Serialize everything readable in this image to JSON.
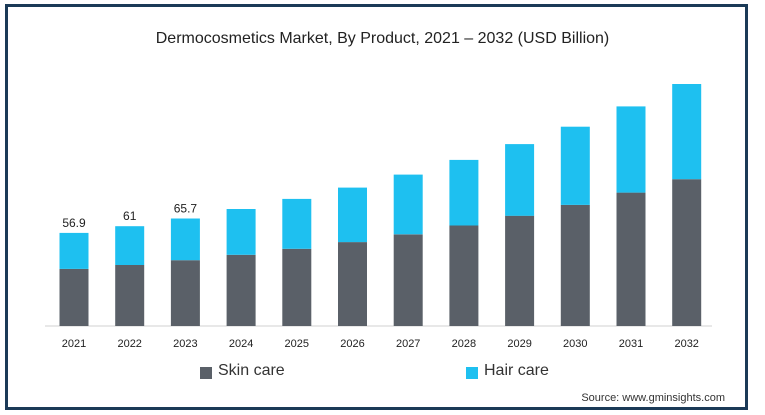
{
  "chart_data": {
    "type": "bar",
    "stacked": true,
    "title": "Dermocosmetics Market, By Product, 2021 – 2032 (USD Billion)",
    "categories": [
      "2021",
      "2022",
      "2023",
      "2024",
      "2025",
      "2026",
      "2027",
      "2028",
      "2029",
      "2030",
      "2031",
      "2032"
    ],
    "series": [
      {
        "name": "Skin care",
        "color": "#5a6068",
        "values": [
          34.9,
          37.3,
          40.2,
          43.5,
          47.2,
          51.3,
          56.0,
          61.4,
          67.4,
          74.0,
          81.5,
          89.7
        ]
      },
      {
        "name": "Hair care",
        "color": "#1ec0f0",
        "values": [
          22.0,
          23.7,
          25.5,
          28.0,
          30.5,
          33.3,
          36.5,
          40.1,
          43.8,
          47.8,
          52.7,
          58.2
        ]
      }
    ],
    "totals": [
      56.9,
      61.0,
      65.7,
      71.5,
      77.7,
      84.6,
      92.5,
      101.5,
      111.2,
      121.8,
      134.2,
      147.9
    ],
    "data_labels": [
      "56.9",
      "61",
      "65.7"
    ],
    "ylim": [
      0,
      150
    ],
    "grid": false,
    "legend_position": "bottom",
    "source": "Source: www.gminsights.com"
  }
}
